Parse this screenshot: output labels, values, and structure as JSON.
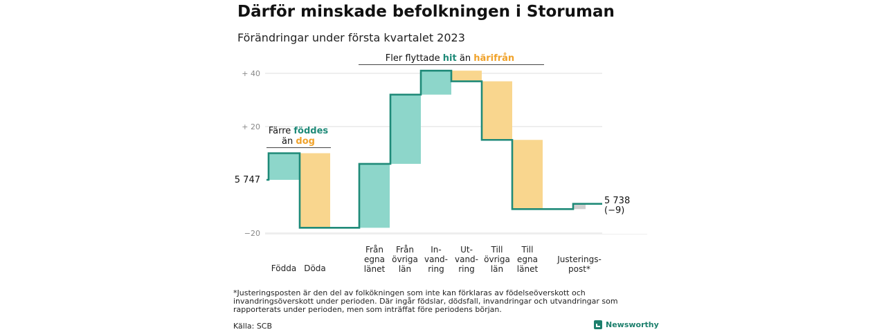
{
  "title": "Därför minskade befolkningen i Storuman",
  "subtitle": "Förändringar under första kvartalet 2023",
  "chart_data": {
    "type": "waterfall",
    "baseline": 5747,
    "baseline_label": "5 747",
    "end_value": 5738,
    "end_label": "5 738",
    "end_change_label": "(−9)",
    "y_ticks": [
      {
        "offset": 40,
        "label": "+ 40"
      },
      {
        "offset": 20,
        "label": "+ 20"
      },
      {
        "offset": -20,
        "label": "−20"
      }
    ],
    "ylim": [
      -20,
      40
    ],
    "steps": [
      {
        "lines": [
          "Födda"
        ],
        "change": 10,
        "kind": "pos"
      },
      {
        "lines": [
          "Döda"
        ],
        "change": -28,
        "kind": "neg"
      },
      {
        "lines": [
          "Från",
          "egna",
          "länet"
        ],
        "change": 24,
        "kind": "pos"
      },
      {
        "lines": [
          "Från",
          "övriga",
          "län"
        ],
        "change": 26,
        "kind": "pos"
      },
      {
        "lines": [
          "In-",
          "vand-",
          "ring"
        ],
        "change": 9,
        "kind": "pos"
      },
      {
        "lines": [
          "Ut-",
          "vand-",
          "ring"
        ],
        "change": -4,
        "kind": "neg"
      },
      {
        "lines": [
          "Till",
          "övriga",
          "län"
        ],
        "change": -22,
        "kind": "neg"
      },
      {
        "lines": [
          "Till",
          "egna",
          "länet"
        ],
        "change": -26,
        "kind": "neg"
      },
      {
        "lines": [
          "Justerings-",
          "post*"
        ],
        "change": 2,
        "kind": "adj"
      }
    ],
    "colors": {
      "pos": "#8dd6ca",
      "neg": "#f9d68e",
      "adj": "#cfcfcf",
      "line": "#1f8a78",
      "grid": "#dddddd"
    },
    "annotations": [
      {
        "parts": [
          {
            "text": "Fler flyttade ",
            "color": "#111111",
            "bold": false
          },
          {
            "text": "hit",
            "color": "#1f8a78",
            "bold": true
          },
          {
            "text": " än ",
            "color": "#111111",
            "bold": false
          },
          {
            "text": "härifrån",
            "color": "#f0a22a",
            "bold": true
          }
        ]
      },
      {
        "parts": [
          {
            "text": "Färre ",
            "color": "#111111",
            "bold": false
          },
          {
            "text": "föddes",
            "color": "#1f8a78",
            "bold": true
          }
        ]
      },
      {
        "parts": [
          {
            "text": "än ",
            "color": "#111111",
            "bold": false
          },
          {
            "text": "dog",
            "color": "#f0a22a",
            "bold": true
          }
        ]
      }
    ]
  },
  "footnote": "*Justeringsposten är den del av folkökningen som inte kan förklaras av födelseöverskott och invandringsöverskott under perioden. Där ingår födslar, dödsfall, invandringar och utvandringar som rapporterats under perioden, men som inträffat före periodens början.",
  "source": "Källa: SCB",
  "brand": "Newsworthy"
}
